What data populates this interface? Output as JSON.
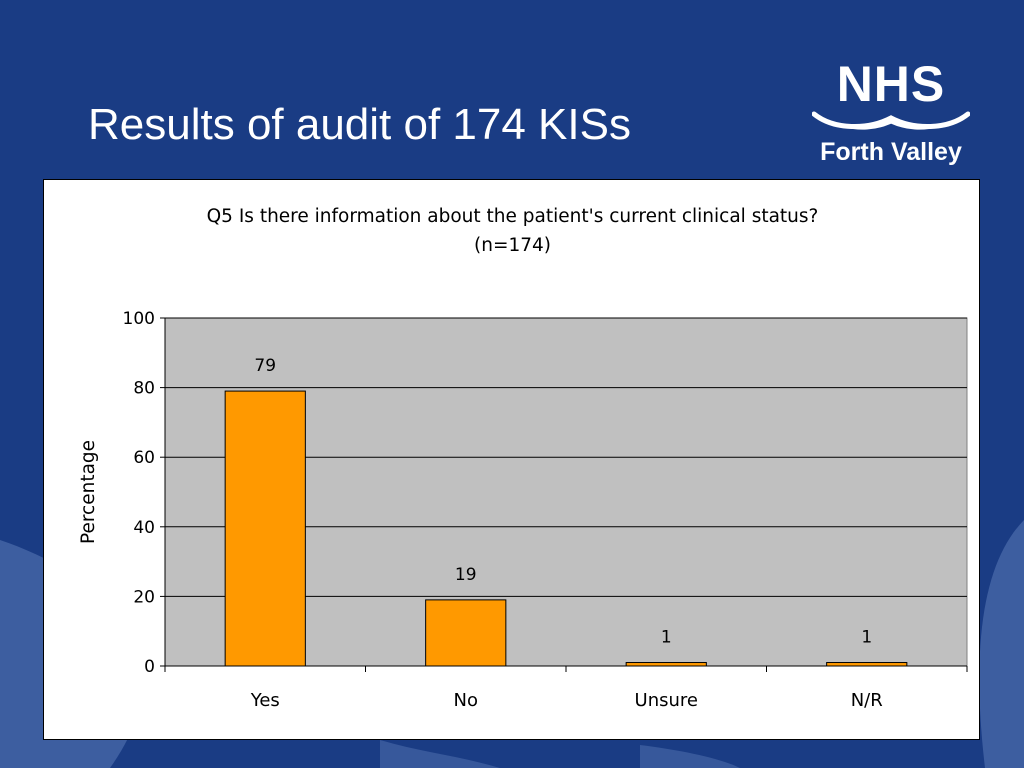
{
  "slide": {
    "title": "Results of audit of 174 KISs",
    "background_color": "#1a3c84"
  },
  "logo": {
    "name": "NHS",
    "subtitle": "Forth Valley",
    "icon": "nhs-waves-icon"
  },
  "chart_data": {
    "type": "bar",
    "title": "Q5 Is there information about the patient's current clinical status?",
    "subtitle": "(n=174)",
    "categories": [
      "Yes",
      "No",
      "Unsure",
      "N/R"
    ],
    "values": [
      79,
      19,
      1,
      1
    ],
    "data_labels": [
      "79",
      "19",
      "1",
      "1"
    ],
    "ylabel": "Percentage",
    "xlabel": "",
    "ylim": [
      0,
      100
    ],
    "yticks": [
      0,
      20,
      40,
      60,
      80,
      100
    ],
    "grid": true,
    "legend": "none",
    "bar_color": "#ff9900",
    "plot_background": "#c0c0c0"
  }
}
